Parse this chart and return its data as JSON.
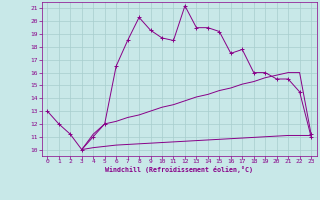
{
  "xlabel": "Windchill (Refroidissement éolien,°C)",
  "xlim": [
    -0.5,
    23.5
  ],
  "ylim": [
    9.5,
    21.5
  ],
  "x_ticks": [
    0,
    1,
    2,
    3,
    4,
    5,
    6,
    7,
    8,
    9,
    10,
    11,
    12,
    13,
    14,
    15,
    16,
    17,
    18,
    19,
    20,
    21,
    22,
    23
  ],
  "y_ticks": [
    10,
    11,
    12,
    13,
    14,
    15,
    16,
    17,
    18,
    19,
    20,
    21
  ],
  "bg_color": "#c8e8e8",
  "grid_color": "#a8cece",
  "line_color": "#880088",
  "line1_x": [
    0,
    1,
    2,
    3,
    4,
    5,
    6,
    7,
    8,
    9,
    10,
    11,
    12,
    13,
    14,
    15,
    16,
    17,
    18,
    19,
    20,
    21,
    22,
    23
  ],
  "line1_y": [
    13,
    12,
    11.2,
    10,
    11,
    12,
    16.5,
    18.5,
    20.3,
    19.3,
    18.7,
    18.5,
    21.2,
    19.5,
    19.5,
    19.2,
    17.5,
    17.8,
    16,
    16,
    15.5,
    15.5,
    14.5,
    11
  ],
  "line2_x": [
    3,
    4,
    5,
    6,
    7,
    8,
    9,
    10,
    11,
    12,
    13,
    14,
    15,
    16,
    17,
    18,
    19,
    20,
    21,
    22,
    23
  ],
  "line2_y": [
    10.0,
    10.15,
    10.25,
    10.35,
    10.4,
    10.45,
    10.5,
    10.55,
    10.6,
    10.65,
    10.7,
    10.75,
    10.8,
    10.85,
    10.9,
    10.95,
    11.0,
    11.05,
    11.1,
    11.1,
    11.1
  ],
  "line3_x": [
    3,
    4,
    5,
    6,
    7,
    8,
    9,
    10,
    11,
    12,
    13,
    14,
    15,
    16,
    17,
    18,
    19,
    20,
    21,
    22,
    23
  ],
  "line3_y": [
    10.0,
    11.2,
    12.0,
    12.2,
    12.5,
    12.7,
    13.0,
    13.3,
    13.5,
    13.8,
    14.1,
    14.3,
    14.6,
    14.8,
    15.1,
    15.3,
    15.6,
    15.8,
    16.0,
    16.0,
    11.2
  ]
}
